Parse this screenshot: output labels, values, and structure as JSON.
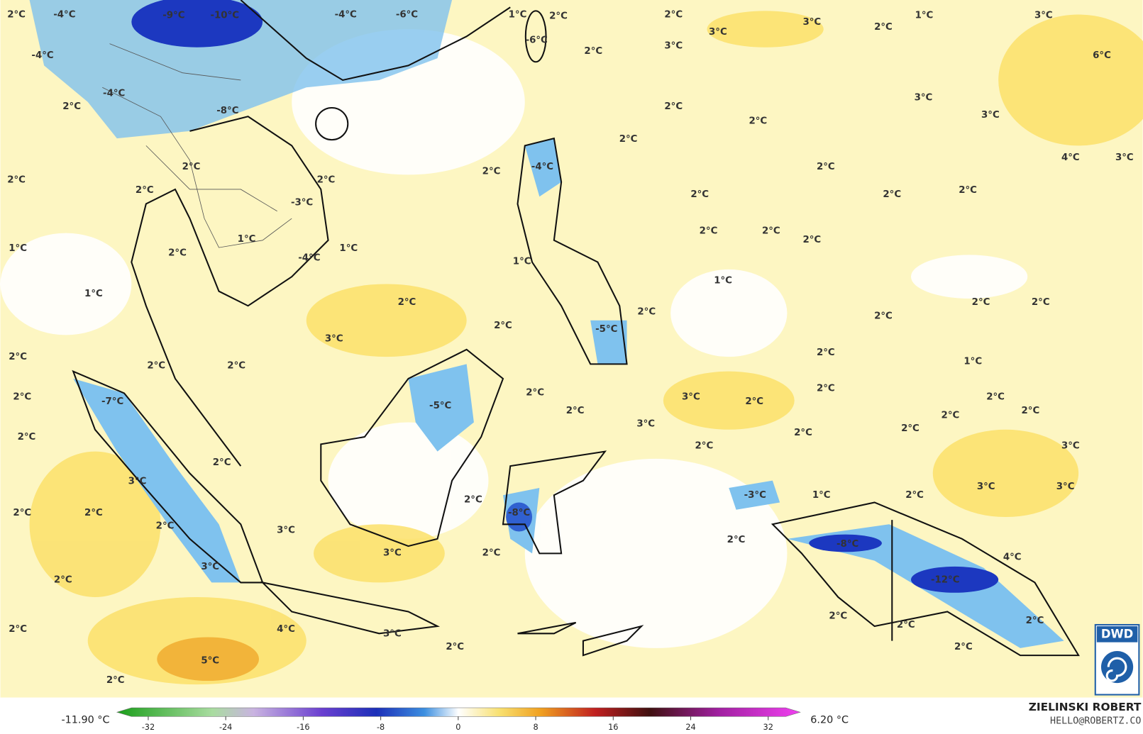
{
  "map": {
    "labels": [
      "-4°C",
      "-9°C",
      "-10°C",
      "-4°C",
      "-6°C",
      "2°C",
      "1°C",
      "2°C",
      "2°C",
      "3°C",
      "2°C",
      "1°C",
      "3°C",
      "3°C",
      "3°C",
      "2°C",
      "-6°C",
      "6°C",
      "-4°C",
      "-4°C",
      "2°C",
      "-8°C",
      "3°C",
      "2°C",
      "2°C",
      "3°C",
      "2°C",
      "4°C",
      "3°C",
      "2°C",
      "-4°C",
      "2°C",
      "2°C",
      "2°C",
      "2°C",
      "2°C",
      "2°C",
      "2°C",
      "2°C",
      "-3°C",
      "2°C",
      "2°C",
      "2°C",
      "1°C",
      "1°C",
      "1°C",
      "2°C",
      "-4°C",
      "1°C",
      "1°C",
      "1°C",
      "2°C",
      "2°C",
      "2°C",
      "2°C",
      "2°C",
      "2°C",
      "-5°C",
      "3°C",
      "2°C",
      "2°C",
      "2°C",
      "2°C",
      "1°C",
      "2°C",
      "2°C",
      "2°C",
      "-7°C",
      "-5°C",
      "3°C",
      "2°C",
      "2°C",
      "2°C",
      "2°C",
      "2°C",
      "3°C",
      "2°C",
      "2°C",
      "2°C",
      "2°C",
      "3°C",
      "2°C",
      "3°C",
      "3°C",
      "3°C",
      "1°C",
      "-3°C",
      "2°C",
      "2°C",
      "2°C",
      "2°C",
      "-8°C",
      "2°C",
      "3°C",
      "2°C",
      "-8°C",
      "3°C",
      "2°C",
      "4°C",
      "3°C",
      "2°C",
      "-12°C",
      "2°C",
      "2°C",
      "2°C",
      "4°C",
      "2°C",
      "3°C",
      "2°C",
      "2°C",
      "5°C",
      "2°C"
    ],
    "colorbar": {
      "min_label": "-11.90 °C",
      "max_label": "6.20 °C",
      "ticks": [
        -32,
        -24,
        -16,
        -8,
        0,
        8,
        16,
        24,
        32
      ]
    },
    "credit": {
      "name": "ZIELINSKI ROBERT",
      "contact": "HELLO@ROBERTZ.CO"
    },
    "logo": "DWD"
  }
}
